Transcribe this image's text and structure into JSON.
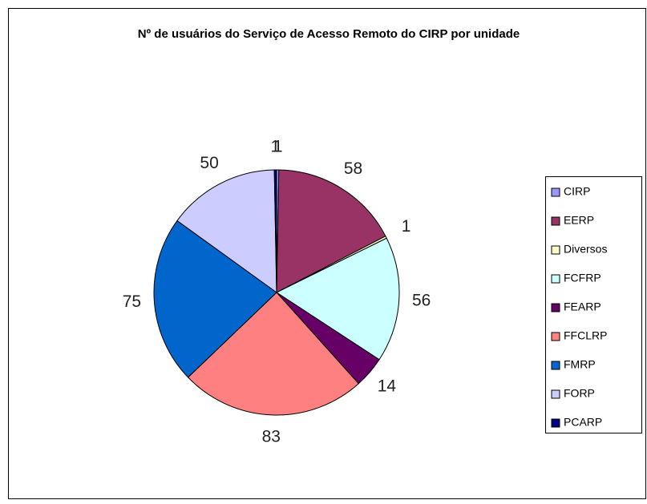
{
  "chart_data": {
    "type": "pie",
    "title": "Nº de usuários do Serviço de Acesso Remoto do CIRP por unidade",
    "categories": [
      "CIRP",
      "EERP",
      "Diversos",
      "FCFRP",
      "FEARP",
      "FFCLRP",
      "FMRP",
      "FORP",
      "PCARP"
    ],
    "values": [
      1,
      58,
      1,
      56,
      14,
      83,
      75,
      50,
      1
    ],
    "colors": [
      "#9999ff",
      "#993366",
      "#ffffcc",
      "#ccffff",
      "#660066",
      "#ff8080",
      "#0066cc",
      "#ccccff",
      "#000080"
    ],
    "legend": "right"
  }
}
